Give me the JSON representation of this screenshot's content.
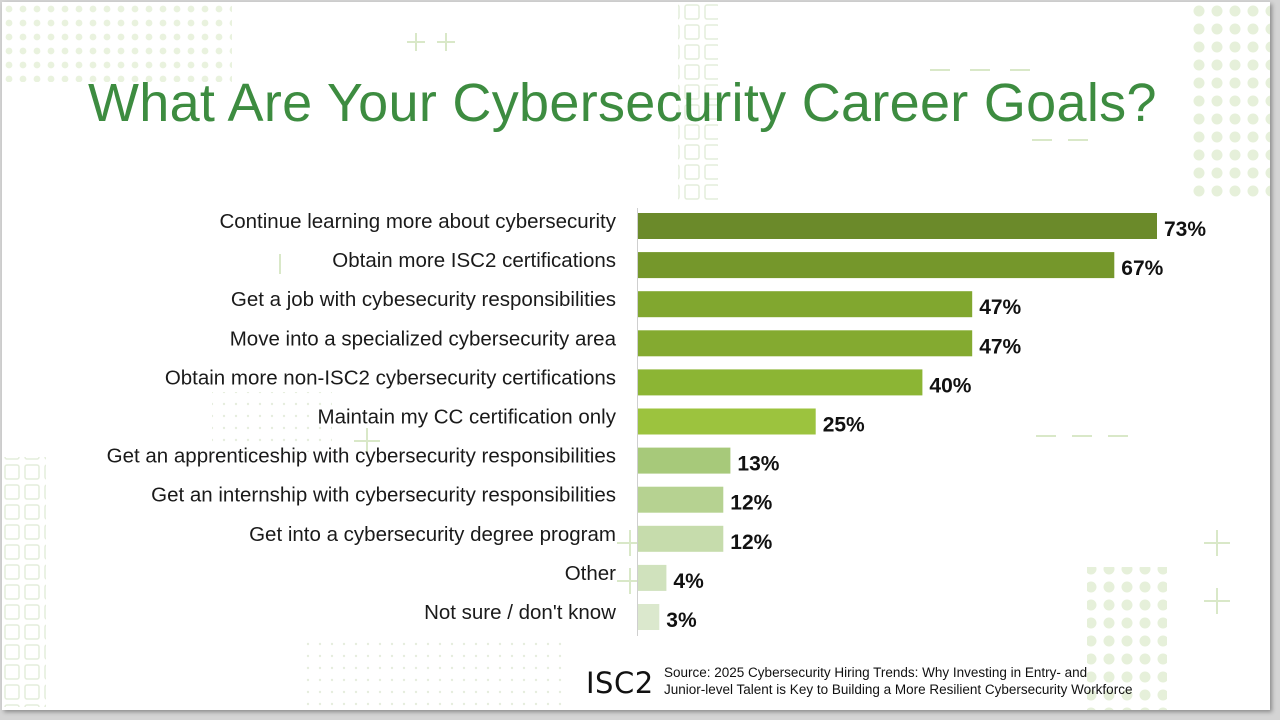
{
  "slide": {
    "title": "What Are Your Cybersecurity Career Goals?",
    "logo_text": "ISC2",
    "source_line1": "Source: 2025 Cybersecurity Hiring Trends: Why Investing in Entry- and",
    "source_line2": "Junior-level Talent is Key to Building a More Resilient Cybersecurity Workforce"
  },
  "colors": {
    "title": "#3d8c40",
    "bars": [
      "#6b8a2a",
      "#75972b",
      "#81a72f",
      "#84aa30",
      "#8cb534",
      "#9cc33e",
      "#a7c97a",
      "#b6d291",
      "#c6dcac",
      "#d0e2bd",
      "#dbe8cd"
    ]
  },
  "chart_data": {
    "type": "bar",
    "orientation": "horizontal",
    "title": "What Are Your Cybersecurity Career Goals?",
    "categories": [
      "Continue learning more about cybersecurity",
      "Obtain more ISC2 certifications",
      "Get a job with cybesecurity responsibilities",
      "Move into a specialized cybersecurity area",
      "Obtain more non-ISC2 cybersecurity certifications",
      "Maintain my CC certification only",
      "Get an apprenticeship with cybersecurity responsibilities",
      "Get an internship with cybersecurity responsibilities",
      "Get into a cybersecurity degree program",
      "Other",
      "Not sure / don't know"
    ],
    "values": [
      73,
      67,
      47,
      47,
      40,
      25,
      13,
      12,
      12,
      4,
      3
    ],
    "value_labels": [
      "73%",
      "67%",
      "47%",
      "47%",
      "40%",
      "25%",
      "13%",
      "12%",
      "12%",
      "4%",
      "3%"
    ],
    "xlim": [
      0,
      100
    ],
    "xlabel": "",
    "ylabel": "",
    "grid": false,
    "legend": "none"
  }
}
